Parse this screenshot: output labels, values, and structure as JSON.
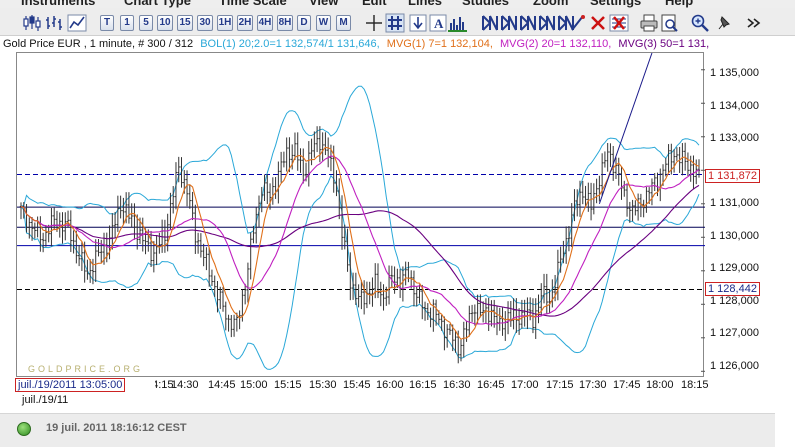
{
  "menu": [
    "Instruments",
    "Chart Type",
    "Time Scale",
    "View",
    "Edit",
    "Lines",
    "Studies",
    "Zoom",
    "Settings",
    "Help"
  ],
  "toolbar": {
    "timeframes": [
      "T",
      "1",
      "5",
      "10",
      "15",
      "30",
      "1H",
      "2H",
      "4H",
      "8H",
      "D",
      "W",
      "M"
    ],
    "icons": [
      "candlestick-chart-icon",
      "bar-chart-icon",
      "line-chart-icon",
      "area-chart-icon",
      "crosshair-icon",
      "grid-icon",
      "arrow-down-icon",
      "text-tool-icon",
      "volume-icon",
      "fibonacci-icon",
      "fibonacci-icon",
      "fibonacci-icon",
      "fibonacci-icon",
      "fibonacci-icon",
      "draw-line-icon",
      "delete-icon",
      "delete-all-icon",
      "print-icon",
      "export-icon",
      "zoom-in-icon",
      "pin-icon",
      "more-icon"
    ]
  },
  "legend": [
    {
      "text": "Gold Price EUR , 1 minute, # 300 / 312",
      "color": "#111111"
    },
    {
      "text": "BOL(1) 20;2.0=1 132,574/1 131,646,",
      "color": "#2aa8d8"
    },
    {
      "text": "MVG(1) 7=1 132,104,",
      "color": "#e0701a"
    },
    {
      "text": "MVG(2) 20=1 132,110,",
      "color": "#c020c0"
    },
    {
      "text": "MVG(3) 50=1 131,",
      "color": "#6a0080"
    }
  ],
  "chart_data": {
    "type": "candlestick",
    "title": "Gold Price EUR , 1 minute",
    "ylim": [
      1125800,
      1135500
    ],
    "y_ticks": [
      "1 126,000",
      "1 127,000",
      "1 128,000",
      "1 129,000",
      "1 130,000",
      "1 131,000",
      "1 132,000",
      "1 133,000",
      "1 134,000",
      "1 135,000"
    ],
    "x_ticks": [
      "14:15",
      "14:30",
      "14:45",
      "15:00",
      "15:15",
      "15:30",
      "15:45",
      "16:00",
      "16:15",
      "16:30",
      "16:45",
      "17:00",
      "17:15",
      "17:30",
      "17:45",
      "18:00",
      "18:15"
    ],
    "price_labels": {
      "current": "1 131,872",
      "lower": "1 128,442"
    },
    "horizontal_lines": [
      {
        "y": 1131872,
        "style": "dashed",
        "color": "#0000aa"
      },
      {
        "y": 1128442,
        "style": "dashed",
        "color": "#000000"
      },
      {
        "y": 1130900,
        "style": "solid",
        "color": "#000055"
      },
      {
        "y": 1130300,
        "style": "solid",
        "color": "#000055"
      },
      {
        "y": 1129750,
        "style": "solid",
        "color": "#0000aa"
      }
    ],
    "price_path": [
      [
        0,
        1130800
      ],
      [
        4,
        1130300
      ],
      [
        8,
        1130000
      ],
      [
        12,
        1130500
      ],
      [
        17,
        1130300
      ],
      [
        20,
        1129600
      ],
      [
        24,
        1128900
      ],
      [
        28,
        1129500
      ],
      [
        32,
        1129900
      ],
      [
        36,
        1131000
      ],
      [
        40,
        1130500
      ],
      [
        44,
        1129900
      ],
      [
        48,
        1129500
      ],
      [
        52,
        1130100
      ],
      [
        55,
        1131300
      ],
      [
        57,
        1132100
      ],
      [
        60,
        1131400
      ],
      [
        63,
        1130100
      ],
      [
        67,
        1129200
      ],
      [
        71,
        1128300
      ],
      [
        75,
        1127500
      ],
      [
        78,
        1127400
      ],
      [
        81,
        1128600
      ],
      [
        84,
        1130200
      ],
      [
        87,
        1131500
      ],
      [
        90,
        1131200
      ],
      [
        93,
        1131900
      ],
      [
        96,
        1132500
      ],
      [
        99,
        1132600
      ],
      [
        102,
        1131900
      ],
      [
        105,
        1132600
      ],
      [
        108,
        1132900
      ],
      [
        111,
        1132400
      ],
      [
        114,
        1131500
      ],
      [
        116,
        1130100
      ],
      [
        119,
        1128700
      ],
      [
        122,
        1128100
      ],
      [
        125,
        1128300
      ],
      [
        128,
        1128600
      ],
      [
        131,
        1128200
      ],
      [
        134,
        1128800
      ],
      [
        137,
        1128700
      ],
      [
        140,
        1128900
      ],
      [
        143,
        1128300
      ],
      [
        146,
        1127800
      ],
      [
        149,
        1127800
      ],
      [
        152,
        1127400
      ],
      [
        155,
        1127100
      ],
      [
        158,
        1126700
      ],
      [
        161,
        1127300
      ],
      [
        164,
        1128000
      ],
      [
        167,
        1127700
      ],
      [
        170,
        1127800
      ],
      [
        173,
        1127300
      ],
      [
        176,
        1127700
      ],
      [
        179,
        1127500
      ],
      [
        182,
        1127800
      ],
      [
        185,
        1127500
      ],
      [
        188,
        1128300
      ],
      [
        191,
        1128100
      ],
      [
        194,
        1129000
      ],
      [
        197,
        1129900
      ],
      [
        200,
        1130900
      ],
      [
        203,
        1131400
      ],
      [
        206,
        1130900
      ],
      [
        209,
        1131800
      ],
      [
        212,
        1132500
      ],
      [
        215,
        1132100
      ],
      [
        218,
        1131200
      ],
      [
        221,
        1130800
      ],
      [
        224,
        1131000
      ],
      [
        227,
        1131400
      ],
      [
        230,
        1131700
      ],
      [
        233,
        1132200
      ],
      [
        236,
        1132500
      ],
      [
        239,
        1132300
      ],
      [
        242,
        1132100
      ],
      [
        245,
        1131800
      ]
    ],
    "series": [
      {
        "name": "BOL(1) 20;2.0",
        "color": "#2aa8d8"
      },
      {
        "name": "MVG(1) 7",
        "color": "#e0701a"
      },
      {
        "name": "MVG(2) 20",
        "color": "#c020c0"
      },
      {
        "name": "MVG(3) 50",
        "color": "#6a0080"
      }
    ]
  },
  "cursor_date": "juil./19/2011 13:05:00",
  "day_label": "juil./19/11",
  "watermark": "GOLDPRICE.ORG",
  "status": {
    "text": "19 juil. 2011 18:16:12 CEST",
    "color": "#3a9a2a"
  }
}
